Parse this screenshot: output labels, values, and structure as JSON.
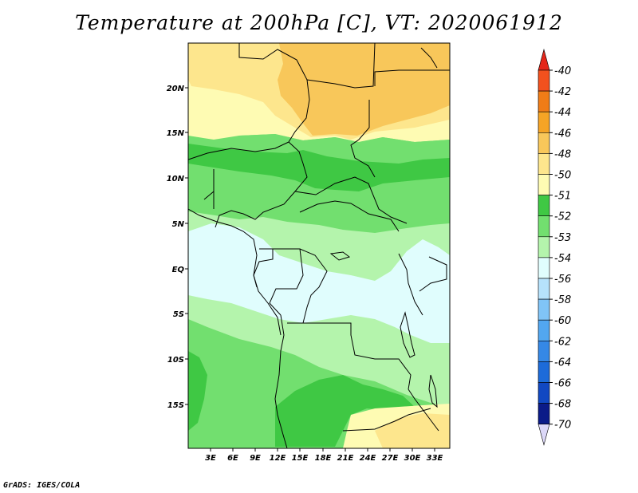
{
  "title": "Temperature at 200hPa [C], VT: 2020061912",
  "credit": "GrADS: IGES/COLA",
  "map": {
    "lat_labels": [
      "20N",
      "15N",
      "10N",
      "5N",
      "EQ",
      "5S",
      "10S",
      "15S"
    ],
    "lon_labels": [
      "3E",
      "6E",
      "9E",
      "12E",
      "15E",
      "18E",
      "21E",
      "24E",
      "27E",
      "30E",
      "33E"
    ]
  },
  "colorbar": {
    "labels": [
      "-40",
      "-42",
      "-44",
      "-46",
      "-48",
      "-50",
      "-51",
      "-52",
      "-53",
      "-54",
      "-56",
      "-58",
      "-60",
      "-62",
      "-64",
      "-66",
      "-68",
      "-70"
    ],
    "colors": [
      "#e4271b",
      "#f2511e",
      "#f07c17",
      "#f5a425",
      "#f8c75a",
      "#fde68d",
      "#fefbb3",
      "#3fc844",
      "#72df6f",
      "#b4f4ac",
      "#e0fdfd",
      "#b6e2fb",
      "#80c4f7",
      "#52a7f0",
      "#3588e6",
      "#1d6bd9",
      "#1148c2",
      "#0b1b88",
      "#dcd8f8"
    ],
    "palette": {
      "pale_yellow": "#fefbb3",
      "yellow": "#fde68d",
      "orange": "#f8c75a",
      "green_dark": "#3fc844",
      "green": "#72df6f",
      "green_light": "#b4f4ac",
      "cyan": "#e0fdfd"
    }
  }
}
